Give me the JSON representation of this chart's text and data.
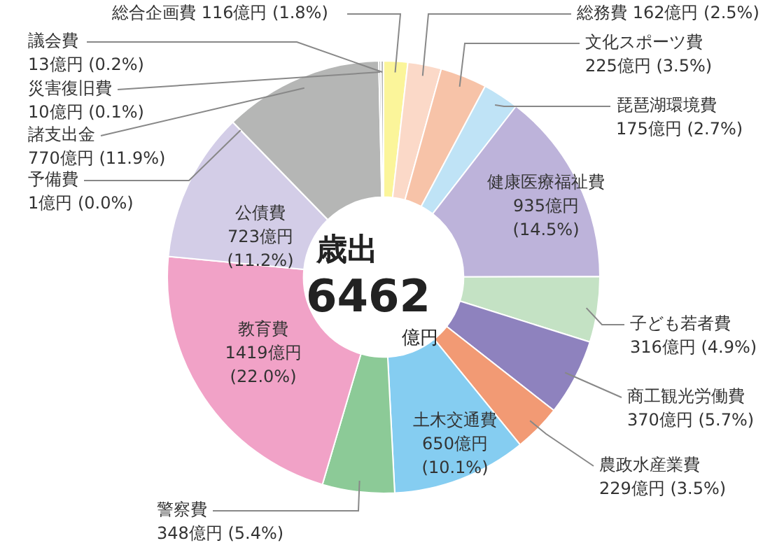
{
  "chart_data": {
    "type": "donut",
    "legend": false,
    "categories": [
      "総合企画費",
      "総務費",
      "文化スポーツ費",
      "琵琶湖環境費",
      "健康医療福祉費",
      "子ども若者費",
      "商工観光労働費",
      "農政水産業費",
      "土木交通費",
      "警察費",
      "教育費",
      "公債費",
      "予備費",
      "諸支出金",
      "災害復旧費",
      "議会費"
    ],
    "values": [
      116,
      162,
      225,
      175,
      935,
      316,
      370,
      229,
      650,
      348,
      1419,
      723,
      1,
      770,
      10,
      13
    ],
    "colors": [
      "#fbf59a",
      "#fbd9c8",
      "#f7c3a8",
      "#bfe3f6",
      "#bdb3da",
      "#c4e2c4",
      "#8e82be",
      "#f29a74",
      "#85cdf1",
      "#8cca97",
      "#f1a2c7",
      "#d3cde7",
      "#b5b6b5",
      "#b5b6b5",
      "#b5b6b5",
      "#b5b6b5"
    ],
    "value_labels": [
      "116億円 (1.8%)",
      "162億円 (2.5%)",
      "225億円 (3.5%)",
      "175億円 (2.7%)",
      "935億円 (14.5%)",
      "316億円 (4.9%)",
      "370億円 (5.7%)",
      "229億円 (3.5%)",
      "650億円 (10.1%)",
      "348億円 (5.4%)",
      "1419億円 (22.0%)",
      "723億円 (11.2%)",
      "1億円 (0.0%)",
      "770億円 (11.9%)",
      "10億円 (0.1%)",
      "13億円 (0.2%)"
    ],
    "annotations": [
      "歳出",
      "6462",
      "億円"
    ]
  }
}
